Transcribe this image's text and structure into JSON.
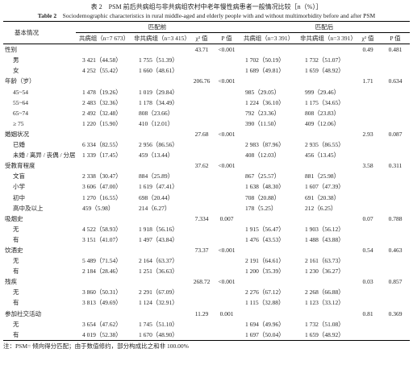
{
  "title": {
    "zh": "表 2　PSM 前后共病组与非共病组农村中老年慢性病患者一般情况比较［n（%）］",
    "en_label": "Table 2",
    "en": "Sociodemographic characteristics in rural middle-aged and elderly people with and without multimorbidity before and after PSM"
  },
  "header": {
    "item": "基本情况",
    "before": "匹配前",
    "after": "匹配后",
    "columns": [
      "共病组（n=7 673）",
      "非共病组（n=3 415）",
      "χ² 值",
      "P 值",
      "共病组（n=3 391）",
      "非共病组（n=3 391）",
      "χ² 值",
      "P 值"
    ]
  },
  "groups": [
    {
      "label": "性别",
      "stats": [
        "43.71",
        "<0.001",
        "0.49",
        "0.481"
      ],
      "levels": [
        {
          "label": "男",
          "cells": [
            "3 421（44.58）",
            "1 755（51.39）",
            "1 702（50.19）",
            "1 732（51.07）"
          ]
        },
        {
          "label": "女",
          "cells": [
            "4 252（55.42）",
            "1 660（48.61）",
            "1 689（49.81）",
            "1 659（48.92）"
          ]
        }
      ]
    },
    {
      "label": "年龄（岁）",
      "stats": [
        "206.76",
        "<0.001",
        "1.71",
        "0.634"
      ],
      "levels": [
        {
          "label": "45~54",
          "cells": [
            "1 478（19.26）",
            "1 019（29.84）",
            "985（29.05）",
            "999（29.46）"
          ]
        },
        {
          "label": "55~64",
          "cells": [
            "2 483（32.36）",
            "1 178（34.49）",
            "1 224（36.10）",
            "1 175（34.65）"
          ]
        },
        {
          "label": "65~74",
          "cells": [
            "2 492（32.48）",
            "808（23.66）",
            "792（23.36）",
            "808（23.83）"
          ]
        },
        {
          "label": "≥ 75",
          "cells": [
            "1 220（15.90）",
            "410（12.01）",
            "390（11.50）",
            "409（12.06）"
          ]
        }
      ]
    },
    {
      "label": "婚姻状况",
      "stats": [
        "27.68",
        "<0.001",
        "2.93",
        "0.087"
      ],
      "levels": [
        {
          "label": "已婚",
          "cells": [
            "6 334（82.55）",
            "2 956（86.56）",
            "2 983（87.96）",
            "2 935（86.55）"
          ]
        },
        {
          "label": "未婚 / 离异 / 丧偶 / 分居",
          "cells": [
            "1 339（17.45）",
            "459（13.44）",
            "408（12.03）",
            "456（13.45）"
          ]
        }
      ]
    },
    {
      "label": "受教育程度",
      "stats": [
        "37.62",
        "<0.001",
        "3.58",
        "0.311"
      ],
      "levels": [
        {
          "label": "文盲",
          "cells": [
            "2 338（30.47）",
            "884（25.89）",
            "867（25.57）",
            "881（25.98）"
          ]
        },
        {
          "label": "小学",
          "cells": [
            "3 606（47.00）",
            "1 619（47.41）",
            "1 638（48.30）",
            "1 607（47.39）"
          ]
        },
        {
          "label": "初中",
          "cells": [
            "1 270（16.55）",
            "698（20.44）",
            "708（20.88）",
            "691（20.38）"
          ]
        },
        {
          "label": "高中及以上",
          "cells": [
            "459（5.98）",
            "214（6.27）",
            "178（5.25）",
            "212（6.25）"
          ]
        }
      ]
    },
    {
      "label": "吸烟史",
      "stats": [
        "7.334",
        "0.007",
        "0.07",
        "0.788"
      ],
      "levels": [
        {
          "label": "无",
          "cells": [
            "4 522（58.93）",
            "1 918（56.16）",
            "1 915（56.47）",
            "1 903（56.12）"
          ]
        },
        {
          "label": "有",
          "cells": [
            "3 151（41.07）",
            "1 497（43.84）",
            "1 476（43.53）",
            "1 488（43.88）"
          ]
        }
      ]
    },
    {
      "label": "饮酒史",
      "stats": [
        "73.37",
        "<0.001",
        "0.54",
        "0.463"
      ],
      "levels": [
        {
          "label": "无",
          "cells": [
            "5 489（71.54）",
            "2 164（63.37）",
            "2 191（64.61）",
            "2 161（63.73）"
          ]
        },
        {
          "label": "有",
          "cells": [
            "2 184（28.46）",
            "1 251（36.63）",
            "1 200（35.39）",
            "1 230（36.27）"
          ]
        }
      ]
    },
    {
      "label": "残疾",
      "stats": [
        "268.72",
        "<0.001",
        "0.03",
        "0.857"
      ],
      "levels": [
        {
          "label": "无",
          "cells": [
            "3 860（50.31）",
            "2 291（67.09）",
            "2 276（67.12）",
            "2 268（66.88）"
          ]
        },
        {
          "label": "有",
          "cells": [
            "3 813（49.69）",
            "1 124（32.91）",
            "1 115（32.88）",
            "1 123（33.12）"
          ]
        }
      ]
    },
    {
      "label": "参加社交活动",
      "stats": [
        "11.29",
        "0.001",
        "0.81",
        "0.369"
      ],
      "levels": [
        {
          "label": "无",
          "cells": [
            "3 654（47.62）",
            "1 745（51.10）",
            "1 694（49.96）",
            "1 732（51.08）"
          ]
        },
        {
          "label": "有",
          "cells": [
            "4 019（52.38）",
            "1 670（48.90）",
            "1 697（50.04）",
            "1 659（48.92）"
          ]
        }
      ]
    }
  ],
  "note": "注：PSM= 倾向得分匹配；由于数值修约，部分构成比之和非 100.00%"
}
